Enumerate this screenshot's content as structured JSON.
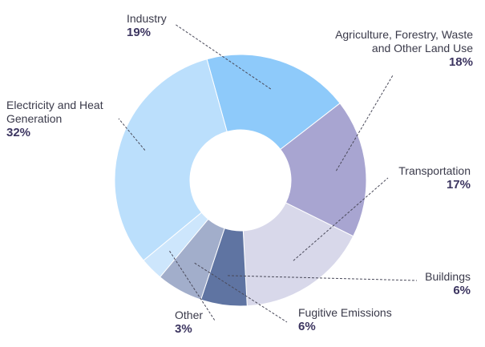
{
  "chart_data": {
    "type": "pie",
    "donut": true,
    "title": "",
    "slices": [
      {
        "label_lines": [
          "Industry"
        ],
        "value": 19,
        "value_text": "19%",
        "color": "#8ECAFA"
      },
      {
        "label_lines": [
          "Agriculture, Forestry, Waste",
          "and Other Land Use"
        ],
        "value": 18,
        "value_text": "18%",
        "color": "#A8A5D1"
      },
      {
        "label_lines": [
          "Transportation"
        ],
        "value": 17,
        "value_text": "17%",
        "color": "#D8D8EA"
      },
      {
        "label_lines": [
          "Buildings"
        ],
        "value": 6,
        "value_text": "6%",
        "color": "#5F74A2"
      },
      {
        "label_lines": [
          "Fugitive Emissions"
        ],
        "value": 6,
        "value_text": "6%",
        "color": "#A2AECB"
      },
      {
        "label_lines": [
          "Other"
        ],
        "value": 3,
        "value_text": "3%",
        "color": "#CDE6FC"
      },
      {
        "label_lines": [
          "Electricity and Heat",
          "Generation"
        ],
        "value": 32,
        "value_text": "32%",
        "color": "#BBDFFC"
      }
    ]
  }
}
